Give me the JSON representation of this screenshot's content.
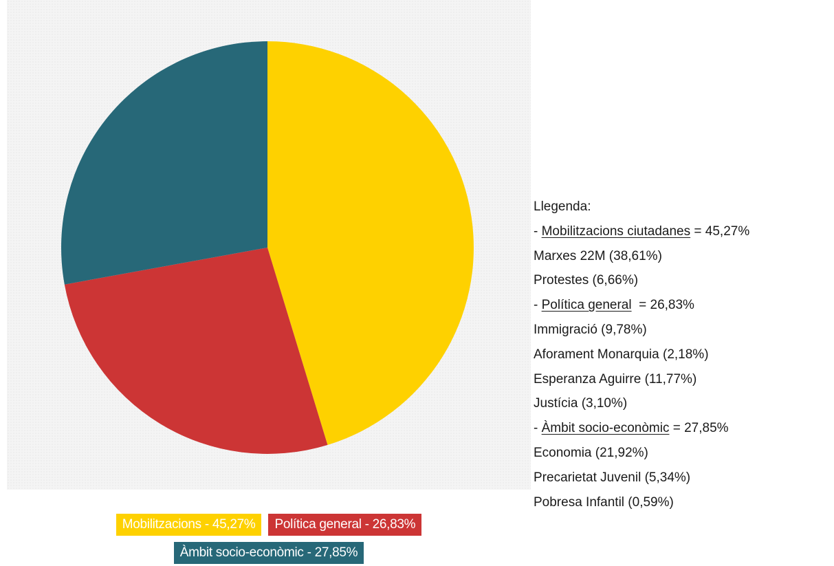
{
  "chart_data": {
    "type": "pie",
    "slices": [
      {
        "label": "Mobilitzacions",
        "value": 45.27,
        "color": "#FED100"
      },
      {
        "label": "Política general",
        "value": 26.83,
        "color": "#CC3535"
      },
      {
        "label": "Àmbit socio-econòmic",
        "value": 27.85,
        "color": "#276878"
      }
    ],
    "start_angle_deg": 0,
    "direction": "clockwise",
    "background": "dotted light gray"
  },
  "legend_tags": [
    [
      "Mobilitzacions - 45,27%",
      "Política general - 26,83%"
    ],
    [
      "Àmbit socio-econòmic - 27,85%"
    ]
  ],
  "side_legend": {
    "title": "Llegenda:",
    "groups": [
      {
        "prefix": "- ",
        "name": "Mobilitzacions ciutadanes",
        "suffix": " = 45,27%",
        "items": [
          "Marxes 22M (38,61%)",
          "Protestes (6,66%)"
        ]
      },
      {
        "prefix": "- ",
        "name": "Política general",
        "suffix": "  = 26,83%",
        "items": [
          "Immigració (9,78%)",
          "Aforament Monarquia (2,18%)",
          "Esperanza Aguirre (11,77%)",
          "Justícia (3,10%)"
        ]
      },
      {
        "prefix": "- ",
        "name": "Àmbit socio-econòmic",
        "suffix": " = 27,85%",
        "items": [
          "Economia (21,92%)",
          "Precarietat Juvenil (5,34%)",
          "Pobresa Infantil (0,59%)"
        ]
      }
    ]
  }
}
